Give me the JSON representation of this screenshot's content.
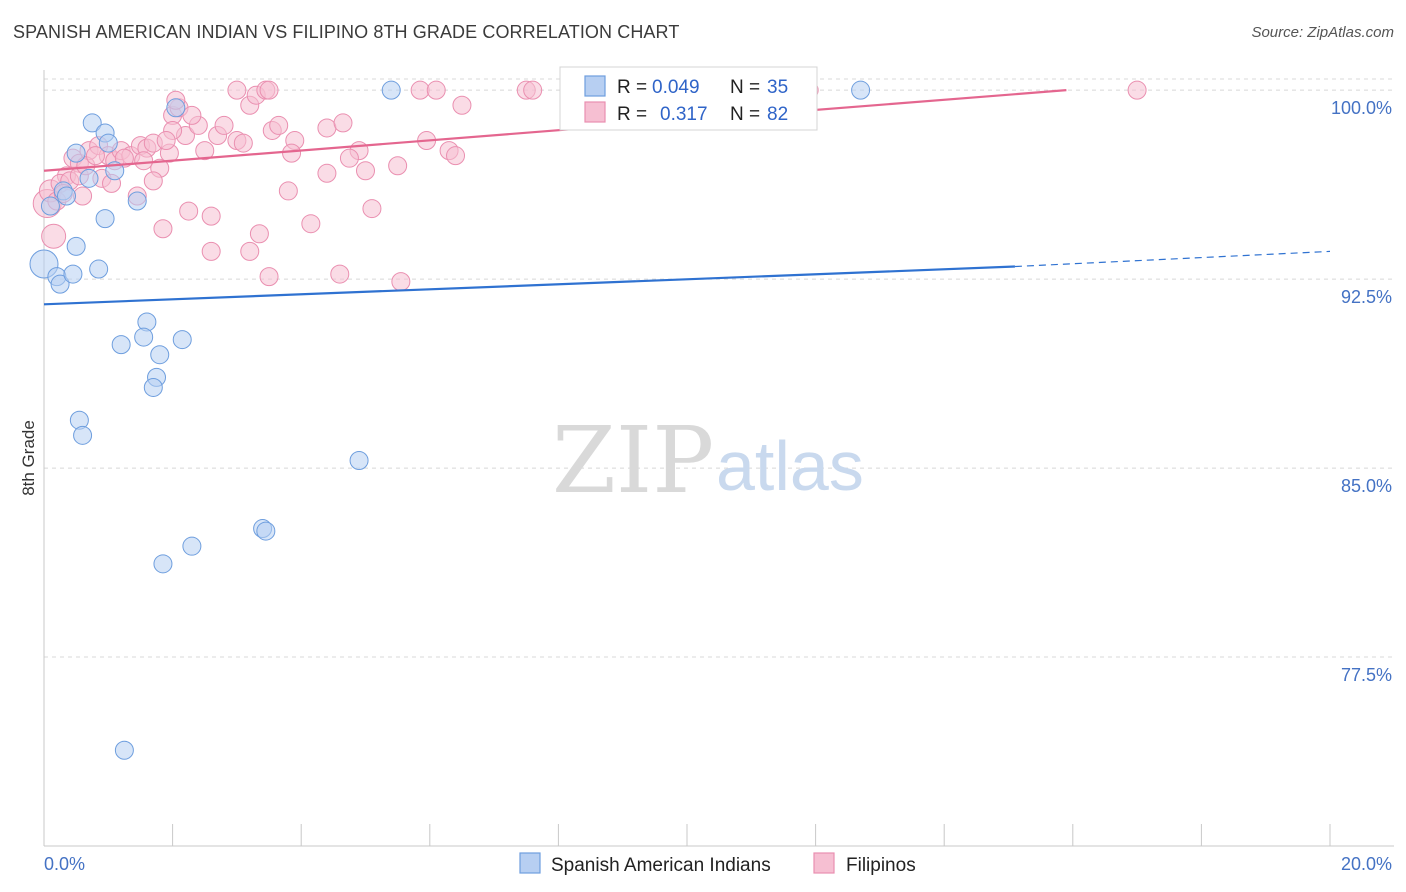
{
  "header": {
    "title": "SPANISH AMERICAN INDIAN VS FILIPINO 8TH GRADE CORRELATION CHART",
    "source": "Source: ZipAtlas.com"
  },
  "watermark": {
    "zip": "ZIP",
    "atlas": "atlas"
  },
  "colors": {
    "blue_fill": "#b7cff2",
    "blue_stroke": "#6e9ede",
    "blue_line": "#2f72d1",
    "pink_fill": "#f6bfd2",
    "pink_stroke": "#ea8fb0",
    "pink_line": "#e4668f",
    "grid": "#d8d8d8",
    "axis_text": "#4472c4"
  },
  "legend": {
    "rows": [
      {
        "r_label": "R =",
        "r_value": "0.049",
        "n_label": "N =",
        "n_value": "35"
      },
      {
        "r_label": "R =",
        "r_value": "0.317",
        "n_label": "N =",
        "n_value": "82"
      }
    ]
  },
  "chart_data": {
    "type": "scatter",
    "title": "SPANISH AMERICAN INDIAN VS FILIPINO 8TH GRADE CORRELATION CHART",
    "xlabel": "",
    "ylabel": "8th Grade",
    "xlim": [
      0,
      20
    ],
    "ylim": [
      70.0,
      100.8
    ],
    "x_tick_labels": [
      "0.0%",
      "20.0%"
    ],
    "y_ticks": [
      {
        "value": 100.0,
        "label": "100.0%"
      },
      {
        "value": 92.5,
        "label": "92.5%"
      },
      {
        "value": 85.0,
        "label": "85.0%"
      },
      {
        "value": 77.5,
        "label": "77.5%"
      }
    ],
    "series": [
      {
        "name": "Spanish American Indians",
        "color": "blue",
        "r": 0.049,
        "n": 35,
        "trend": {
          "x0": 0.0,
          "y0": 91.5,
          "x1": 15.1,
          "y1": 93.0,
          "dash_x1": 20.0,
          "dash_y1": 93.6
        },
        "points": [
          [
            0.0,
            93.1,
            14
          ],
          [
            0.1,
            95.4,
            9
          ],
          [
            0.3,
            96.0,
            9
          ],
          [
            0.35,
            95.8,
            9
          ],
          [
            0.5,
            97.5,
            9
          ],
          [
            0.75,
            98.7,
            9
          ],
          [
            0.95,
            98.3,
            9
          ],
          [
            1.0,
            97.9,
            9
          ],
          [
            1.1,
            96.8,
            9
          ],
          [
            0.7,
            96.5,
            9
          ],
          [
            0.2,
            92.6,
            9
          ],
          [
            0.25,
            92.3,
            9
          ],
          [
            0.45,
            92.7,
            9
          ],
          [
            0.85,
            92.9,
            9
          ],
          [
            0.5,
            93.8,
            9
          ],
          [
            0.95,
            94.9,
            9
          ],
          [
            1.45,
            95.6,
            9
          ],
          [
            1.6,
            90.8,
            9
          ],
          [
            1.55,
            90.2,
            9
          ],
          [
            1.2,
            89.9,
            9
          ],
          [
            1.8,
            89.5,
            9
          ],
          [
            2.15,
            90.1,
            9
          ],
          [
            1.75,
            88.6,
            9
          ],
          [
            1.7,
            88.2,
            9
          ],
          [
            0.55,
            86.9,
            9
          ],
          [
            0.6,
            86.3,
            9
          ],
          [
            4.9,
            85.3,
            9
          ],
          [
            3.4,
            82.6,
            9
          ],
          [
            3.45,
            82.5,
            9
          ],
          [
            2.3,
            81.9,
            9
          ],
          [
            1.85,
            81.2,
            9
          ],
          [
            1.25,
            73.8,
            9
          ],
          [
            5.4,
            100.0,
            9
          ],
          [
            12.7,
            100.0,
            9
          ],
          [
            2.05,
            99.3,
            9
          ]
        ]
      },
      {
        "name": "Filipinos",
        "color": "pink",
        "r": 0.317,
        "n": 82,
        "trend": {
          "x0": 0.0,
          "y0": 96.8,
          "x1": 15.9,
          "y1": 100.0
        },
        "points": [
          [
            0.05,
            95.5,
            14
          ],
          [
            0.15,
            94.2,
            12
          ],
          [
            0.1,
            96.0,
            11
          ],
          [
            0.35,
            96.6,
            9
          ],
          [
            0.45,
            97.3,
            9
          ],
          [
            0.55,
            97.1,
            9
          ],
          [
            0.7,
            97.6,
            9
          ],
          [
            0.85,
            97.8,
            9
          ],
          [
            0.9,
            96.5,
            9
          ],
          [
            1.0,
            97.4,
            9
          ],
          [
            1.1,
            97.2,
            9
          ],
          [
            1.2,
            97.6,
            9
          ],
          [
            1.35,
            97.4,
            9
          ],
          [
            1.5,
            97.8,
            9
          ],
          [
            1.6,
            97.7,
            9
          ],
          [
            1.7,
            97.9,
            9
          ],
          [
            1.8,
            96.9,
            9
          ],
          [
            1.95,
            97.5,
            9
          ],
          [
            2.0,
            99.0,
            9
          ],
          [
            2.1,
            99.3,
            9
          ],
          [
            2.2,
            98.2,
            9
          ],
          [
            2.4,
            98.6,
            9
          ],
          [
            2.5,
            97.6,
            9
          ],
          [
            2.7,
            98.2,
            9
          ],
          [
            2.8,
            98.6,
            9
          ],
          [
            3.0,
            98.0,
            9
          ],
          [
            3.1,
            97.9,
            9
          ],
          [
            3.2,
            99.4,
            9
          ],
          [
            3.3,
            99.8,
            9
          ],
          [
            3.55,
            98.4,
            9
          ],
          [
            3.9,
            98.0,
            9
          ],
          [
            4.4,
            98.5,
            9
          ],
          [
            4.65,
            98.7,
            9
          ],
          [
            4.9,
            97.6,
            9
          ],
          [
            5.0,
            96.8,
            9
          ],
          [
            1.45,
            95.8,
            9
          ],
          [
            1.7,
            96.4,
            9
          ],
          [
            2.25,
            95.2,
            9
          ],
          [
            2.6,
            95.0,
            9
          ],
          [
            2.0,
            98.4,
            9
          ],
          [
            1.9,
            98.0,
            9
          ],
          [
            3.8,
            96.0,
            9
          ],
          [
            4.4,
            96.7,
            9
          ],
          [
            4.75,
            97.3,
            9
          ],
          [
            5.5,
            97.0,
            9
          ],
          [
            5.95,
            98.0,
            9
          ],
          [
            6.3,
            97.6,
            9
          ],
          [
            6.4,
            97.4,
            9
          ],
          [
            6.5,
            99.4,
            9
          ],
          [
            7.5,
            100.0,
            9
          ],
          [
            7.6,
            100.0,
            9
          ],
          [
            5.85,
            100.0,
            9
          ],
          [
            6.1,
            100.0,
            9
          ],
          [
            3.0,
            100.0,
            9
          ],
          [
            3.45,
            100.0,
            9
          ],
          [
            3.5,
            100.0,
            9
          ],
          [
            2.05,
            99.6,
            9
          ],
          [
            3.65,
            98.6,
            9
          ],
          [
            4.15,
            94.7,
            9
          ],
          [
            3.35,
            94.3,
            9
          ],
          [
            2.6,
            93.6,
            9
          ],
          [
            1.85,
            94.5,
            9
          ],
          [
            3.2,
            93.6,
            9
          ],
          [
            3.5,
            92.6,
            9
          ],
          [
            4.6,
            92.7,
            9
          ],
          [
            5.55,
            92.4,
            9
          ],
          [
            5.1,
            95.3,
            9
          ],
          [
            0.6,
            95.8,
            9
          ],
          [
            0.25,
            96.3,
            9
          ],
          [
            0.4,
            96.4,
            9
          ],
          [
            0.55,
            96.6,
            9
          ],
          [
            0.2,
            95.6,
            9
          ],
          [
            0.3,
            95.9,
            9
          ],
          [
            0.65,
            97.0,
            9
          ],
          [
            1.05,
            96.3,
            9
          ],
          [
            1.25,
            97.3,
            9
          ],
          [
            0.8,
            97.4,
            9
          ],
          [
            17.0,
            100.0,
            9
          ],
          [
            11.9,
            100.0,
            9
          ],
          [
            2.3,
            99.0,
            9
          ],
          [
            3.85,
            97.5,
            9
          ],
          [
            1.55,
            97.2,
            9
          ]
        ]
      }
    ]
  },
  "bottom_legend": [
    {
      "label": "Spanish American Indians"
    },
    {
      "label": "Filipinos"
    }
  ]
}
